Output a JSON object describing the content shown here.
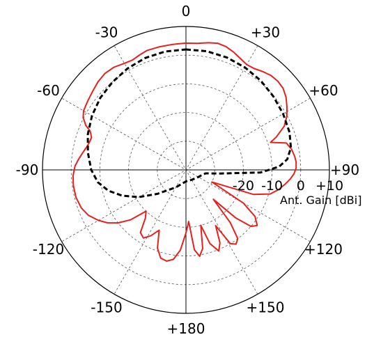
{
  "chart_data": {
    "type": "polar-line",
    "unit_label": "Ant. Gain [dBi]",
    "r_range_dbi": [
      -40,
      10
    ],
    "r_ticks": [
      {
        "value": -30,
        "label": ""
      },
      {
        "value": -20,
        "label": "-20"
      },
      {
        "value": -10,
        "label": "-10"
      },
      {
        "value": 0,
        "label": "0"
      },
      {
        "value": 10,
        "label": "+10"
      }
    ],
    "angle_labels": [
      {
        "deg": 0,
        "label": "0"
      },
      {
        "deg": 30,
        "label": "+30"
      },
      {
        "deg": 60,
        "label": "+60"
      },
      {
        "deg": 90,
        "label": "+90"
      },
      {
        "deg": 120,
        "label": "+120"
      },
      {
        "deg": 150,
        "label": "+150"
      },
      {
        "deg": 180,
        "label": "+180"
      },
      {
        "deg": -150,
        "label": "-150"
      },
      {
        "deg": -120,
        "label": "-120"
      },
      {
        "deg": -90,
        "label": "-90"
      },
      {
        "deg": -60,
        "label": "-60"
      },
      {
        "deg": -30,
        "label": "-30"
      }
    ],
    "grid": true,
    "series": [
      {
        "color": "#e8201c",
        "style": "solid",
        "points": [
          [
            0,
            4.2
          ],
          [
            5,
            4.3
          ],
          [
            10,
            5.0
          ],
          [
            14,
            5.5
          ],
          [
            18,
            5.2
          ],
          [
            22,
            4.3
          ],
          [
            26,
            3.2
          ],
          [
            30,
            2.4
          ],
          [
            34,
            2.6
          ],
          [
            38,
            3.5
          ],
          [
            42,
            4.3
          ],
          [
            46,
            4.5
          ],
          [
            50,
            4.2
          ],
          [
            54,
            3.1
          ],
          [
            58,
            1.5
          ],
          [
            62,
            -0.2
          ],
          [
            66,
            -2.5
          ],
          [
            70,
            -6.5
          ],
          [
            72,
            -9
          ],
          [
            75,
            -3.8
          ],
          [
            79,
            -2.5
          ],
          [
            83,
            -1.8
          ],
          [
            86,
            -1.5
          ],
          [
            89,
            -1.6
          ],
          [
            92,
            -2.3
          ],
          [
            95,
            -3.5
          ],
          [
            98,
            -5.0
          ],
          [
            102,
            -7.0
          ],
          [
            106,
            -9.5
          ],
          [
            110,
            -15
          ],
          [
            115,
            -30
          ],
          [
            120,
            -17
          ],
          [
            124,
            -11
          ],
          [
            128,
            -8.5
          ],
          [
            131,
            -10
          ],
          [
            134,
            -16
          ],
          [
            137,
            -26
          ],
          [
            140,
            -16
          ],
          [
            143,
            -10
          ],
          [
            146,
            -8.8
          ],
          [
            149,
            -10
          ],
          [
            152,
            -18
          ],
          [
            155,
            -12
          ],
          [
            158,
            -9.5
          ],
          [
            162,
            -13
          ],
          [
            165,
            -20
          ],
          [
            168,
            -12
          ],
          [
            171,
            -9.5
          ],
          [
            174,
            -12
          ],
          [
            177,
            -22
          ],
          [
            180,
            -18
          ],
          [
            -176,
            -12
          ],
          [
            -172,
            -8.5
          ],
          [
            -168,
            -7.5
          ],
          [
            -164,
            -8
          ],
          [
            -160,
            -11
          ],
          [
            -156,
            -17
          ],
          [
            -152,
            -14
          ],
          [
            -148,
            -12
          ],
          [
            -144,
            -13
          ],
          [
            -140,
            -18
          ],
          [
            -136,
            -20
          ],
          [
            -132,
            -14
          ],
          [
            -128,
            -10
          ],
          [
            -124,
            -7
          ],
          [
            -120,
            -4.8
          ],
          [
            -115,
            -2.5
          ],
          [
            -110,
            -1.2
          ],
          [
            -104,
            -0.5
          ],
          [
            -98,
            -0.4
          ],
          [
            -93,
            -0.6
          ],
          [
            -88,
            -1.3
          ],
          [
            -84,
            -2.5
          ],
          [
            -80,
            -3.7
          ],
          [
            -77,
            -4.5
          ],
          [
            -74,
            -5.0
          ],
          [
            -71,
            -5.2
          ],
          [
            -68,
            -4.0
          ],
          [
            -66,
            -1.8
          ],
          [
            -63,
            0.2
          ],
          [
            -60,
            1.2
          ],
          [
            -55,
            1.8
          ],
          [
            -50,
            2.5
          ],
          [
            -45,
            3.4
          ],
          [
            -40,
            3.9
          ],
          [
            -35,
            3.7
          ],
          [
            -30,
            2.9
          ],
          [
            -26,
            2.6
          ],
          [
            -22,
            3.2
          ],
          [
            -18,
            3.8
          ],
          [
            -12,
            3.9
          ],
          [
            -6,
            4.0
          ],
          [
            0,
            4.2
          ]
        ]
      },
      {
        "color": "#000000",
        "style": "dashed",
        "points": [
          [
            0,
            2.0
          ],
          [
            10,
            2.0
          ],
          [
            20,
            1.7
          ],
          [
            30,
            1.2
          ],
          [
            40,
            0.6
          ],
          [
            50,
            -0.2
          ],
          [
            60,
            -0.9
          ],
          [
            70,
            -1.6
          ],
          [
            78,
            -2.6
          ],
          [
            84,
            -4.5
          ],
          [
            88,
            -7.5
          ],
          [
            92,
            -14
          ],
          [
            96,
            -28
          ],
          [
            100,
            -33
          ],
          [
            106,
            -34
          ],
          [
            120,
            -35
          ],
          [
            150,
            -36
          ],
          [
            180,
            -36
          ],
          [
            -150,
            -33
          ],
          [
            -130,
            -27
          ],
          [
            -120,
            -21
          ],
          [
            -112,
            -16
          ],
          [
            -105,
            -12
          ],
          [
            -98,
            -9.0
          ],
          [
            -90,
            -7.0
          ],
          [
            -80,
            -5.3
          ],
          [
            -70,
            -3.6
          ],
          [
            -60,
            -2.2
          ],
          [
            -50,
            -1.0
          ],
          [
            -40,
            -0.1
          ],
          [
            -30,
            0.8
          ],
          [
            -20,
            1.5
          ],
          [
            -10,
            1.9
          ],
          [
            0,
            2.0
          ]
        ]
      }
    ]
  }
}
